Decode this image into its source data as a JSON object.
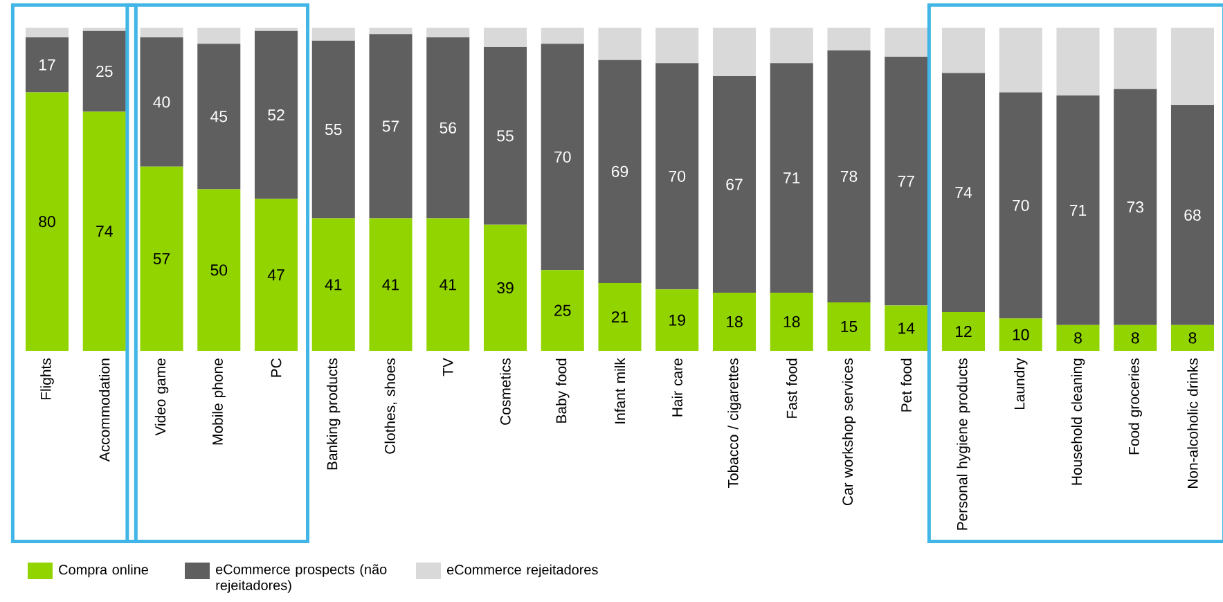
{
  "chart_data": {
    "type": "bar",
    "stacked": true,
    "categories": [
      "Flights",
      "Accommodation",
      "Video game",
      "Mobile phone",
      "PC",
      "Banking products",
      "Clothes, shoes",
      "TV",
      "Cosmetics",
      "Baby food",
      "Infant milk",
      "Hair care",
      "Tobacco / cigarettes",
      "Fast food",
      "Car workshop services",
      "Pet food",
      "Personal hygiene products",
      "Laundry",
      "Household cleaning",
      "Food groceries",
      "Non-alcoholic drinks"
    ],
    "series": [
      {
        "name": "Compra online",
        "color": "#92d400",
        "values": [
          80,
          74,
          57,
          50,
          47,
          41,
          41,
          41,
          39,
          25,
          21,
          19,
          18,
          18,
          15,
          14,
          12,
          10,
          8,
          8,
          8
        ],
        "value_labels": [
          "80",
          "74",
          "57",
          "50",
          "47",
          "41",
          "41",
          "41",
          "39",
          "25",
          "21",
          "19",
          "18",
          "18",
          "15",
          "14",
          "12",
          "10",
          "8",
          "8",
          "8"
        ]
      },
      {
        "name": "eCommerce prospects (não rejeitadores)",
        "color": "#5f5f5f",
        "values": [
          17,
          25,
          40,
          45,
          52,
          55,
          57,
          56,
          55,
          70,
          69,
          70,
          67,
          71,
          78,
          77,
          74,
          70,
          71,
          73,
          68
        ],
        "value_labels": [
          "17",
          "25",
          "40",
          "45",
          "52",
          "55",
          "57",
          "56",
          "55",
          "70",
          "69",
          "70",
          "67",
          "71",
          "78",
          "77",
          "74",
          "70",
          "71",
          "73",
          "68"
        ]
      },
      {
        "name": "eCommerce rejeitadores",
        "color": "#d9d9d9",
        "values": [
          3,
          1,
          3,
          5,
          1,
          4,
          2,
          3,
          6,
          5,
          10,
          11,
          15,
          11,
          7,
          9,
          14,
          20,
          21,
          19,
          24
        ]
      }
    ],
    "ylim": [
      0,
      100
    ],
    "tick_labels": "x",
    "grid": false,
    "legend": "bottom left"
  }
}
